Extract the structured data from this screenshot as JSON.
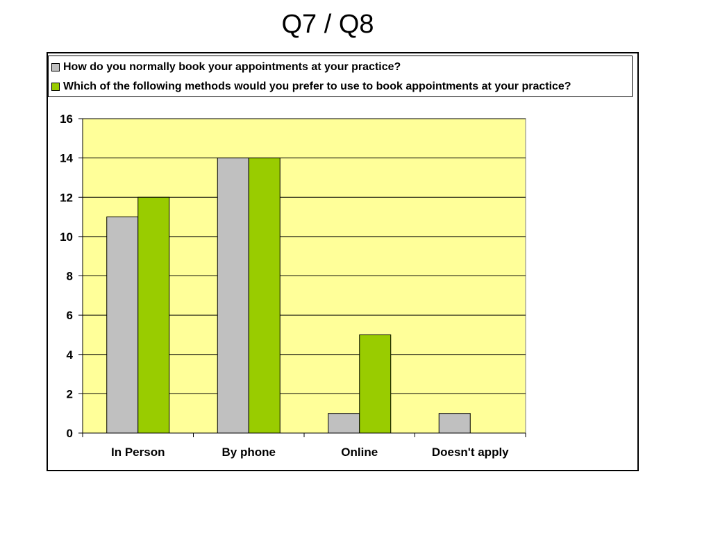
{
  "page": {
    "title": "Q7 / Q8"
  },
  "chart_data": {
    "type": "bar",
    "categories": [
      "In Person",
      "By phone",
      "Online",
      "Doesn't apply"
    ],
    "series": [
      {
        "name": "How do you normally book your appointments at your practice?",
        "values": [
          11,
          14,
          1,
          1
        ],
        "color": "#c0c0c0"
      },
      {
        "name": "Which of the following methods would you prefer to use to book appointments at your practice?",
        "values": [
          12,
          14,
          5,
          0
        ],
        "color": "#99cc00"
      }
    ],
    "ylim": [
      0,
      16
    ],
    "yticks": [
      0,
      2,
      4,
      6,
      8,
      10,
      12,
      14,
      16
    ],
    "grid": true,
    "legend_position": "top",
    "plot_background": "#ffff99"
  }
}
